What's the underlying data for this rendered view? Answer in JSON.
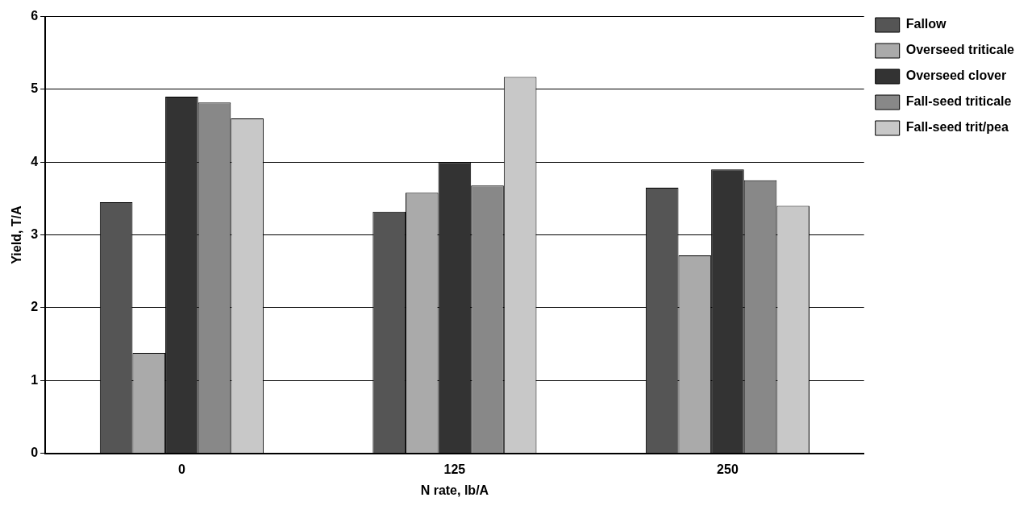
{
  "chart_data": {
    "type": "bar",
    "xlabel": "N rate, lb/A",
    "ylabel": "Yield, T/A",
    "categories": [
      "0",
      "125",
      "250"
    ],
    "series": [
      {
        "name": "Fallow",
        "color": "#555555",
        "values": [
          3.45,
          3.32,
          3.65
        ]
      },
      {
        "name": "Overseed triticale",
        "color": "#aaaaaa",
        "values": [
          1.38,
          3.58,
          2.72
        ]
      },
      {
        "name": "Overseed clover",
        "color": "#333333",
        "values": [
          4.9,
          4.0,
          3.9
        ]
      },
      {
        "name": "Fall-seed triticale",
        "color": "#888888",
        "values": [
          4.82,
          3.68,
          3.75
        ]
      },
      {
        "name": "Fall-seed trit/pea",
        "color": "#c8c8c8",
        "values": [
          4.6,
          5.17,
          3.4
        ]
      }
    ],
    "ylim": [
      0,
      6
    ],
    "yticks": [
      0,
      1,
      2,
      3,
      4,
      5,
      6
    ],
    "grid": "y",
    "legend": "right"
  }
}
